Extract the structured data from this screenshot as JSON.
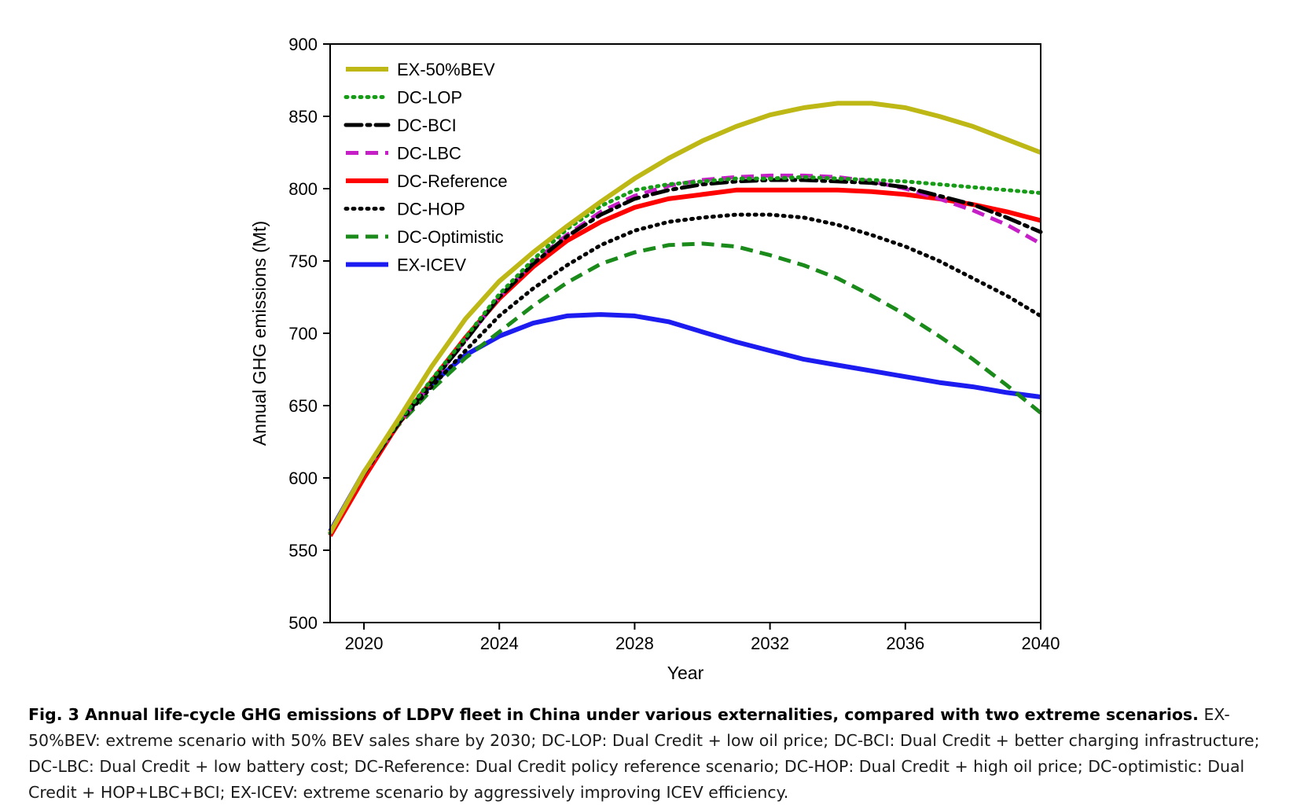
{
  "chart_data": {
    "type": "line",
    "xlabel": "Year",
    "ylabel": "Annual GHG emissions (Mt)",
    "xlim": [
      2019,
      2040
    ],
    "ylim": [
      500,
      900
    ],
    "xticks": [
      2020,
      2024,
      2028,
      2032,
      2036,
      2040
    ],
    "yticks": [
      500,
      550,
      600,
      650,
      700,
      750,
      800,
      850,
      900
    ],
    "grid": false,
    "legend_position": "top-left",
    "x": [
      2019,
      2020,
      2021,
      2022,
      2023,
      2024,
      2025,
      2026,
      2027,
      2028,
      2029,
      2030,
      2031,
      2032,
      2033,
      2034,
      2035,
      2036,
      2037,
      2038,
      2039,
      2040
    ],
    "series": [
      {
        "name": "EX-50%BEV",
        "color": "#bdb815",
        "style": "solid",
        "values": [
          562,
          604,
          640,
          677,
          710,
          736,
          756,
          774,
          791,
          807,
          821,
          833,
          843,
          851,
          856,
          859,
          859,
          856,
          850,
          843,
          834,
          825
        ]
      },
      {
        "name": "DC-LOP",
        "color": "#169c16",
        "style": "dotted",
        "values": [
          562,
          604,
          638,
          668,
          697,
          727,
          751,
          772,
          788,
          799,
          803,
          805,
          807,
          807,
          808,
          807,
          806,
          805,
          803,
          801,
          799,
          797
        ]
      },
      {
        "name": "DC-BCI",
        "color": "#000000",
        "style": "dashdot",
        "values": [
          562,
          603,
          637,
          666,
          695,
          725,
          748,
          767,
          782,
          793,
          799,
          803,
          805,
          806,
          806,
          805,
          804,
          801,
          795,
          789,
          780,
          770
        ]
      },
      {
        "name": "DC-LBC",
        "color": "#c71fc7",
        "style": "dashed",
        "values": [
          562,
          603,
          637,
          666,
          695,
          725,
          749,
          768,
          784,
          795,
          802,
          806,
          808,
          809,
          809,
          808,
          805,
          800,
          793,
          785,
          775,
          762
        ]
      },
      {
        "name": "DC-Reference",
        "color": "#ff0000",
        "style": "solid",
        "values": [
          560,
          600,
          637,
          667,
          697,
          724,
          746,
          764,
          777,
          787,
          793,
          796,
          799,
          799,
          799,
          799,
          798,
          796,
          793,
          789,
          784,
          778
        ]
      },
      {
        "name": "DC-HOP",
        "color": "#000000",
        "style": "dotted",
        "values": [
          562,
          602,
          637,
          663,
          688,
          712,
          731,
          747,
          761,
          771,
          777,
          780,
          782,
          782,
          780,
          775,
          768,
          760,
          750,
          738,
          726,
          712
        ]
      },
      {
        "name": "DC-Optimistic",
        "color": "#1a8a1a",
        "style": "dashed",
        "values": [
          562,
          602,
          636,
          661,
          683,
          701,
          719,
          735,
          748,
          756,
          761,
          762,
          760,
          754,
          747,
          738,
          726,
          713,
          698,
          682,
          664,
          645
        ]
      },
      {
        "name": "EX-ICEV",
        "color": "#1c1cf0",
        "style": "solid",
        "values": [
          563,
          604,
          638,
          665,
          685,
          698,
          707,
          712,
          713,
          712,
          708,
          701,
          694,
          688,
          682,
          678,
          674,
          670,
          666,
          663,
          659,
          656
        ]
      }
    ]
  },
  "caption": {
    "title": "Fig. 3 Annual life-cycle GHG emissions of LDPV fleet in China under various externalities, compared with two extreme scenarios.",
    "text": "EX-50%BEV: extreme scenario with 50% BEV sales share by 2030; DC-LOP: Dual Credit + low oil price; DC-BCI: Dual Credit + better charging infrastructure; DC-LBC: Dual Credit + low battery cost; DC-Reference: Dual Credit policy reference scenario; DC-HOP: Dual Credit + high oil price; DC-optimistic: Dual Credit + HOP+LBC+BCI; EX-ICEV: extreme scenario by aggressively improving ICEV efficiency."
  }
}
